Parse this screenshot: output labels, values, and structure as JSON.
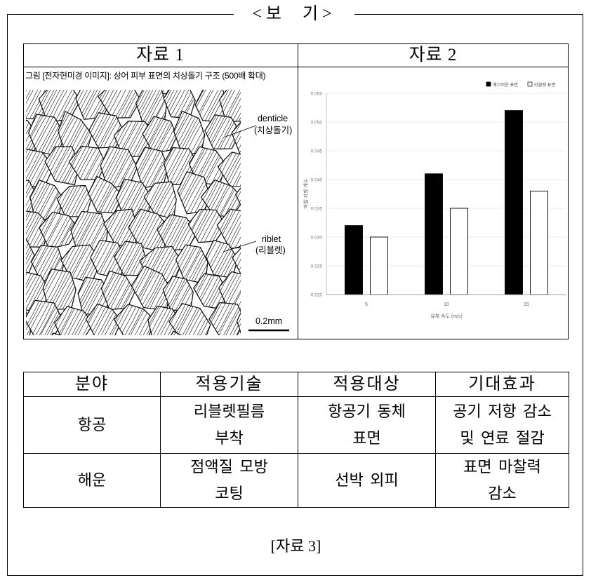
{
  "header": {
    "title": "<보 기>"
  },
  "table1": {
    "col1_header": "자료 1",
    "col2_header": "자료 2",
    "figure": {
      "caption": "그림 [전자현미경 이미지]: 상어 피부 표면의 치상돌기 구조 (500배 확대)",
      "label_denticle": "denticle",
      "label_denticle_ko": "(치상돌기)",
      "label_riblet": "riblet",
      "label_riblet_ko": "(리블렛)",
      "scale_bar": "0.2mm"
    }
  },
  "chart_data": {
    "type": "bar",
    "categories": [
      "5",
      "10",
      "15"
    ],
    "series": [
      {
        "name": "매끄러운 표면",
        "color": "#000000",
        "values": [
          0.032,
          0.041,
          0.052
        ]
      },
      {
        "name": "리블렛 표면",
        "color": "#ffffff",
        "values": [
          0.03,
          0.035,
          0.038
        ]
      }
    ],
    "xlabel": "유체 속도 (m/s)",
    "ylabel": "마찰 저항 계수",
    "ylim": [
      0.02,
      0.055
    ],
    "ytick_labels": [
      "0.020",
      "0.025",
      "0.030",
      "0.035",
      "0.040",
      "0.045",
      "0.050",
      "0.055"
    ],
    "grid": true,
    "legend_position": "top-right"
  },
  "table2": {
    "headers": [
      "분야",
      "적용기술",
      "적용대상",
      "기대효과"
    ],
    "rows": [
      {
        "field": "항공",
        "technology": [
          "리블렛필름",
          "부착"
        ],
        "target": [
          "항공기 동체",
          "표면"
        ],
        "effect": [
          "공기 저항 감소",
          "및 연료 절감"
        ]
      },
      {
        "field": "해운",
        "technology": [
          "점액질 모방",
          "코팅"
        ],
        "target": [
          "선박 외피"
        ],
        "effect": [
          "표면 마찰력",
          "감소"
        ]
      }
    ]
  },
  "footer": {
    "label": "[자료 3]"
  }
}
